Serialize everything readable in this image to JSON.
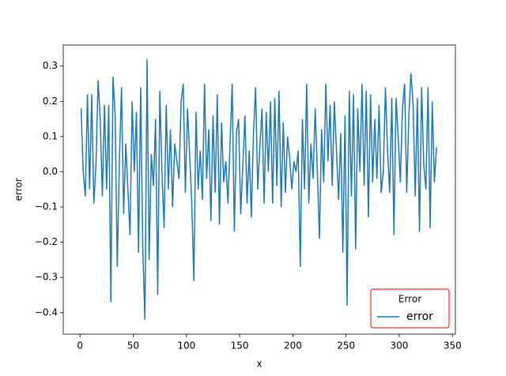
{
  "chart_data": {
    "type": "line",
    "xlabel": "x",
    "ylabel": "error",
    "x": [
      1,
      3,
      5,
      7,
      9,
      11,
      13,
      15,
      17,
      19,
      21,
      23,
      25,
      27,
      29,
      31,
      33,
      35,
      37,
      39,
      41,
      43,
      45,
      47,
      49,
      51,
      53,
      55,
      57,
      59,
      61,
      63,
      65,
      67,
      69,
      71,
      73,
      75,
      77,
      79,
      81,
      83,
      85,
      87,
      89,
      91,
      93,
      95,
      97,
      99,
      101,
      103,
      105,
      107,
      109,
      111,
      113,
      115,
      117,
      119,
      121,
      123,
      125,
      127,
      129,
      131,
      133,
      135,
      137,
      139,
      141,
      143,
      145,
      147,
      149,
      151,
      153,
      155,
      157,
      159,
      161,
      163,
      165,
      167,
      169,
      171,
      173,
      175,
      177,
      179,
      181,
      183,
      185,
      187,
      189,
      191,
      193,
      195,
      197,
      199,
      201,
      203,
      205,
      207,
      209,
      211,
      213,
      215,
      217,
      219,
      221,
      223,
      225,
      227,
      229,
      231,
      233,
      235,
      237,
      239,
      241,
      243,
      245,
      247,
      249,
      251,
      253,
      255,
      257,
      259,
      261,
      263,
      265,
      267,
      269,
      271,
      273,
      275,
      277,
      279,
      281,
      283,
      285,
      287,
      289,
      291,
      293,
      295,
      297,
      299,
      301,
      303,
      305,
      307,
      309,
      311,
      313,
      315,
      317,
      319,
      321,
      323,
      325,
      327,
      329,
      331,
      333,
      335
    ],
    "series": [
      {
        "name": "error",
        "color": "#1f77b4",
        "values": [
          0.18,
          0.0,
          -0.07,
          0.22,
          -0.05,
          0.22,
          -0.09,
          0.02,
          0.26,
          0.15,
          -0.07,
          0.19,
          -0.05,
          0.19,
          -0.37,
          0.27,
          0.16,
          -0.27,
          0.03,
          0.24,
          -0.12,
          0.08,
          -0.05,
          -0.18,
          0.2,
          0.0,
          0.17,
          -0.23,
          0.24,
          -0.22,
          -0.42,
          0.32,
          -0.25,
          0.05,
          -0.04,
          0.15,
          -0.35,
          0.23,
          0.0,
          -0.16,
          0.19,
          -0.05,
          0.12,
          -0.1,
          0.08,
          0.03,
          -0.02,
          0.2,
          0.25,
          -0.06,
          0.18,
          0.05,
          -0.09,
          -0.31,
          0.17,
          -0.05,
          0.06,
          -0.08,
          0.25,
          -0.02,
          0.12,
          -0.14,
          0.16,
          -0.06,
          0.22,
          -0.15,
          0.14,
          -0.03,
          0.03,
          -0.09,
          0.08,
          0.25,
          -0.17,
          0.11,
          0.15,
          -0.12,
          0.02,
          0.16,
          -0.09,
          0.06,
          -0.13,
          0.11,
          0.24,
          -0.05,
          0.07,
          0.18,
          -0.09,
          0.17,
          0.0,
          0.2,
          -0.09,
          0.21,
          -0.04,
          0.23,
          -0.1,
          0.14,
          -0.06,
          0.1,
          0.04,
          -0.05,
          0.03,
          0.0,
          0.06,
          -0.27,
          0.15,
          -0.05,
          0.25,
          -0.09,
          0.08,
          -0.02,
          0.18,
          0.0,
          -0.19,
          0.12,
          -0.03,
          0.25,
          0.03,
          0.19,
          -0.04,
          0.2,
          0.06,
          -0.08,
          0.11,
          -0.23,
          0.16,
          -0.38,
          0.23,
          -0.07,
          0.22,
          -0.22,
          0.18,
          0.0,
          0.25,
          -0.04,
          0.23,
          -0.13,
          0.22,
          -0.03,
          0.15,
          -0.02,
          0.19,
          -0.06,
          0.0,
          0.24,
          0.06,
          -0.06,
          0.21,
          -0.18,
          0.21,
          0.1,
          -0.03,
          0.18,
          0.25,
          -0.06,
          0.16,
          0.28,
          0.19,
          -0.07,
          0.21,
          -0.17,
          0.24,
          0.02,
          -0.05,
          0.24,
          -0.16,
          0.2,
          -0.03,
          0.07
        ]
      }
    ],
    "xlim": [
      -15.75,
      352.75
    ],
    "xticks": [
      0,
      50,
      100,
      150,
      200,
      250,
      300,
      350
    ],
    "ylim": [
      -0.461,
      0.36
    ],
    "yticks": [
      {
        "value": -0.4,
        "label": "−0.4"
      },
      {
        "value": -0.3,
        "label": "−0.3"
      },
      {
        "value": -0.2,
        "label": "−0.2"
      },
      {
        "value": -0.1,
        "label": "−0.1"
      },
      {
        "value": 0,
        "label": "0.0"
      },
      0.1,
      0.2,
      0.3
    ],
    "legend": {
      "title": "Error",
      "loc": "lower right",
      "edgecolor": "#ff0000"
    }
  }
}
